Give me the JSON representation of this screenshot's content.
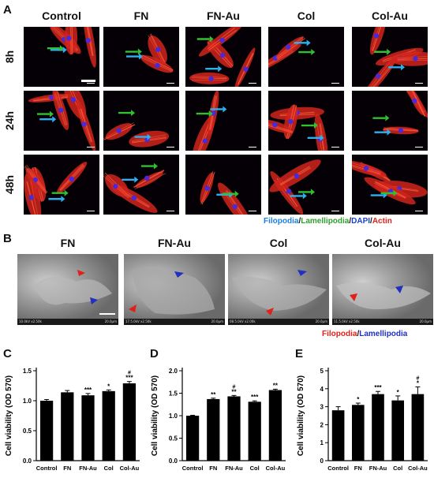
{
  "panelA": {
    "label": "A",
    "columns": [
      "Control",
      "FN",
      "FN-Au",
      "Col",
      "Col-Au"
    ],
    "rows": [
      "8h",
      "24h",
      "48h"
    ],
    "legend": [
      {
        "text": "Filopodia",
        "color": "#1a7fe0"
      },
      {
        "text": "/",
        "color": "#111111"
      },
      {
        "text": "Lamellipodia",
        "color": "#2e9e2e"
      },
      {
        "text": "/",
        "color": "#111111"
      },
      {
        "text": "DAPI",
        "color": "#1a3fd0"
      },
      {
        "text": "/",
        "color": "#111111"
      },
      {
        "text": "Actin",
        "color": "#e0201a"
      }
    ]
  },
  "panelB": {
    "label": "B",
    "columns": [
      "FN",
      "FN-Au",
      "Col",
      "Col-Au"
    ],
    "legend": [
      {
        "text": "Filopodia",
        "color": "#e0201a"
      },
      {
        "text": "/",
        "color": "#111111"
      },
      {
        "text": "Lamellipodia",
        "color": "#2030c0"
      }
    ],
    "sem_bar_texts": [
      [
        "10.0kV x2.50k",
        "20.0µm"
      ],
      [
        "17.5.0kV x2.50k",
        "20.0µm"
      ],
      [
        "08.5.0kV x2.00k",
        "20.0µm"
      ],
      [
        "11.5.0kV x2.50k",
        "20.0µm"
      ]
    ]
  },
  "chart_data": [
    {
      "type": "bar",
      "panel": "C",
      "categories": [
        "Control",
        "FN",
        "FN-Au",
        "Col",
        "Col-Au"
      ],
      "values": [
        1.0,
        1.14,
        1.09,
        1.16,
        1.29
      ],
      "errors": [
        0.02,
        0.03,
        0.03,
        0.02,
        0.03
      ],
      "annotations": [
        "",
        "",
        "***",
        "*",
        "***"
      ],
      "annotations2": [
        "",
        "",
        "",
        "",
        "#"
      ],
      "ylabel": "Cell viability (OD 570)",
      "ylim": [
        0,
        1.5
      ],
      "yticks": [
        0.0,
        0.5,
        1.0,
        1.5
      ],
      "ytick_labels": [
        "0.0",
        "0.5",
        "1.0",
        "1.5"
      ]
    },
    {
      "type": "bar",
      "panel": "D",
      "categories": [
        "Control",
        "FN",
        "FN-Au",
        "Col",
        "Col-Au"
      ],
      "values": [
        1.0,
        1.37,
        1.43,
        1.31,
        1.57
      ],
      "errors": [
        0.01,
        0.02,
        0.02,
        0.02,
        0.02
      ],
      "annotations": [
        "",
        "**",
        "**",
        "***",
        "**"
      ],
      "annotations2": [
        "",
        "",
        "#",
        "",
        ""
      ],
      "ylabel": "Cell viability (OD 570)",
      "ylim": [
        0,
        2.0
      ],
      "yticks": [
        0.0,
        0.5,
        1.0,
        1.5,
        2.0
      ],
      "ytick_labels": [
        "0.0",
        "0.5",
        "1.0",
        "1.5",
        "2.0"
      ]
    },
    {
      "type": "bar",
      "panel": "E",
      "categories": [
        "Control",
        "FN",
        "FN-Au",
        "Col",
        "Col-Au"
      ],
      "values": [
        2.8,
        3.1,
        3.7,
        3.35,
        3.7
      ],
      "errors": [
        0.2,
        0.1,
        0.15,
        0.25,
        0.4
      ],
      "annotations": [
        "",
        "*",
        "***",
        "*",
        "*"
      ],
      "annotations2": [
        "",
        "",
        "",
        "",
        "#"
      ],
      "ylabel": "Cell viability (OD 570)",
      "ylim": [
        0,
        5
      ],
      "yticks": [
        0,
        1,
        2,
        3,
        4,
        5
      ],
      "ytick_labels": [
        "0",
        "1",
        "2",
        "3",
        "4",
        "5"
      ]
    }
  ],
  "panelC": {
    "label": "C"
  },
  "panelD": {
    "label": "D"
  },
  "panelE": {
    "label": "E"
  }
}
